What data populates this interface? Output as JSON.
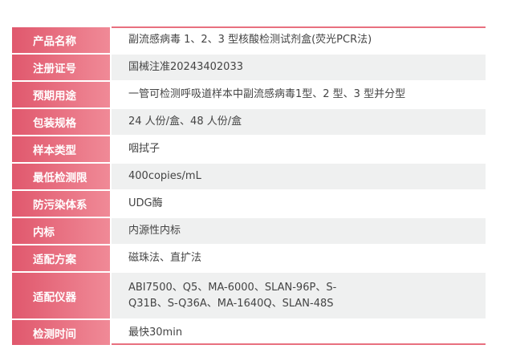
{
  "rows": [
    {
      "label": "产品名称",
      "value": "副流感病毒 1、2、3 型核酸检测试剂盒(荧光PCR法)"
    },
    {
      "label": "注册证号",
      "value": "国械注准20243402033"
    },
    {
      "label": "预期用途",
      "value": "一管可检测呼吸道样本中副流感病毒1型、2 型、3 型并分型"
    },
    {
      "label": "包装规格",
      "value": "24 人份/盒、48 人份/盒"
    },
    {
      "label": "样本类型",
      "value": "咽拭子"
    },
    {
      "label": "最低检测限",
      "value": "400copies/mL"
    },
    {
      "label": "防污染体系",
      "value": "UDG酶"
    },
    {
      "label": "内标",
      "value": "内源性内标"
    },
    {
      "label": "适配方案",
      "value": "磁珠法、直扩法"
    },
    {
      "label": "适配仪器",
      "value": "ABI7500、Q5、MA-6000、SLAN-96P、S-Q31B、S-Q36A、MA-1640Q、SLAN-48S"
    },
    {
      "label": "检测时间",
      "value": "最快30min"
    }
  ],
  "colors": {
    "label_start": "#e0586d",
    "label_end": "#f08a97",
    "accent_line": "#e8707f",
    "alt_row": "#eff0f0"
  }
}
